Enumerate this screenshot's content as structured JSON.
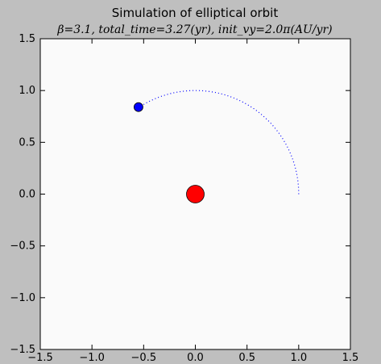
{
  "chart_data": {
    "type": "scatter",
    "title": "Simulation of elliptical orbit",
    "subtitle": "β=3.1, total_time=3.27(yr), init_vy=2.0π(AU/yr)",
    "xlim": [
      -1.5,
      1.5
    ],
    "ylim": [
      -1.5,
      1.5
    ],
    "x_ticks": [
      -1.5,
      -1.0,
      -0.5,
      0.0,
      0.5,
      1.0,
      1.5
    ],
    "y_ticks": [
      -1.5,
      -1.0,
      -0.5,
      0.0,
      0.5,
      1.0,
      1.5
    ],
    "x_tick_labels": [
      "−1.5",
      "−1.0",
      "−0.5",
      "0.0",
      "0.5",
      "1.0",
      "1.5"
    ],
    "y_tick_labels": [
      "−1.5",
      "−1.0",
      "−0.5",
      "0.0",
      "0.5",
      "1.0",
      "1.5"
    ],
    "grid": false,
    "orbit": {
      "style": "dotted",
      "color": "#0000ff",
      "start": [
        1.0,
        0.0
      ],
      "end": [
        -0.55,
        0.84
      ],
      "radius": 1.0
    },
    "sun": {
      "x": 0.0,
      "y": 0.0,
      "color": "#ff0000"
    },
    "planet": {
      "x": -0.55,
      "y": 0.84,
      "color": "#0000ff"
    },
    "colors": {
      "background": "#bfbfbf",
      "plot_bg": "#fafafa"
    }
  }
}
